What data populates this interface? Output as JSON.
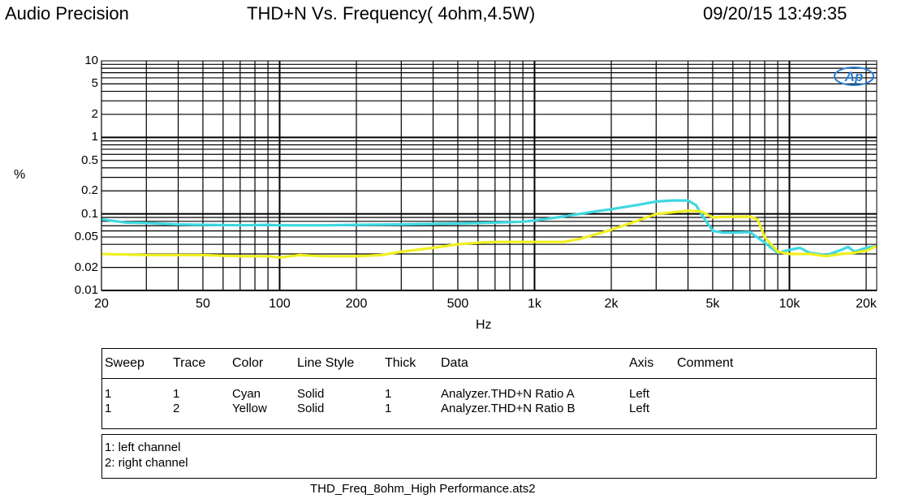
{
  "header": {
    "left": "Audio Precision",
    "center": "THD+N Vs. Frequency( 4ohm,4.5W)",
    "right": "09/20/15 13:49:35"
  },
  "logo_text": "Ap",
  "chart_data": {
    "type": "line",
    "title": "THD+N Vs. Frequency( 4ohm,4.5W)",
    "xlabel": "Hz",
    "ylabel": "%",
    "xscale": "log",
    "yscale": "log",
    "xlim": [
      20,
      22000
    ],
    "ylim": [
      0.01,
      10
    ],
    "grid": true,
    "x_ticks": [
      {
        "value": 20,
        "label": "20"
      },
      {
        "value": 50,
        "label": "50"
      },
      {
        "value": 100,
        "label": "100"
      },
      {
        "value": 200,
        "label": "200"
      },
      {
        "value": 500,
        "label": "500"
      },
      {
        "value": 1000,
        "label": "1k"
      },
      {
        "value": 2000,
        "label": "2k"
      },
      {
        "value": 5000,
        "label": "5k"
      },
      {
        "value": 10000,
        "label": "10k"
      },
      {
        "value": 20000,
        "label": "20k"
      }
    ],
    "y_ticks": [
      {
        "value": 10,
        "label": "10"
      },
      {
        "value": 5,
        "label": "5"
      },
      {
        "value": 2,
        "label": "2"
      },
      {
        "value": 1,
        "label": "1"
      },
      {
        "value": 0.5,
        "label": "0.5"
      },
      {
        "value": 0.2,
        "label": "0.2"
      },
      {
        "value": 0.1,
        "label": "0.1"
      },
      {
        "value": 0.05,
        "label": "0.05"
      },
      {
        "value": 0.02,
        "label": "0.02"
      },
      {
        "value": 0.01,
        "label": "0.01"
      }
    ],
    "series": [
      {
        "color": "#3fd8e0",
        "points": [
          [
            20,
            0.085
          ],
          [
            25,
            0.077
          ],
          [
            30,
            0.076
          ],
          [
            40,
            0.073
          ],
          [
            50,
            0.072
          ],
          [
            70,
            0.071
          ],
          [
            90,
            0.072
          ],
          [
            100,
            0.071
          ],
          [
            150,
            0.071
          ],
          [
            200,
            0.072
          ],
          [
            300,
            0.073
          ],
          [
            400,
            0.074
          ],
          [
            500,
            0.075
          ],
          [
            700,
            0.077
          ],
          [
            900,
            0.079
          ],
          [
            1000,
            0.082
          ],
          [
            1200,
            0.089
          ],
          [
            1500,
            0.1
          ],
          [
            1800,
            0.11
          ],
          [
            2000,
            0.115
          ],
          [
            2500,
            0.13
          ],
          [
            3000,
            0.145
          ],
          [
            3500,
            0.15
          ],
          [
            4000,
            0.15
          ],
          [
            4300,
            0.13
          ],
          [
            4600,
            0.09
          ],
          [
            5000,
            0.06
          ],
          [
            5500,
            0.057
          ],
          [
            6000,
            0.057
          ],
          [
            7000,
            0.058
          ],
          [
            8000,
            0.042
          ],
          [
            9000,
            0.031
          ],
          [
            10000,
            0.034
          ],
          [
            11000,
            0.036
          ],
          [
            12000,
            0.031
          ],
          [
            14000,
            0.029
          ],
          [
            16000,
            0.034
          ],
          [
            17000,
            0.037
          ],
          [
            18000,
            0.032
          ],
          [
            20000,
            0.036
          ],
          [
            22000,
            0.038
          ]
        ]
      },
      {
        "color": "#f0f020",
        "points": [
          [
            20,
            0.03
          ],
          [
            30,
            0.029
          ],
          [
            50,
            0.029
          ],
          [
            70,
            0.028
          ],
          [
            90,
            0.028
          ],
          [
            100,
            0.027
          ],
          [
            120,
            0.029
          ],
          [
            150,
            0.028
          ],
          [
            200,
            0.028
          ],
          [
            250,
            0.029
          ],
          [
            300,
            0.032
          ],
          [
            400,
            0.036
          ],
          [
            500,
            0.04
          ],
          [
            600,
            0.042
          ],
          [
            700,
            0.043
          ],
          [
            1000,
            0.043
          ],
          [
            1300,
            0.043
          ],
          [
            1500,
            0.047
          ],
          [
            2000,
            0.062
          ],
          [
            2500,
            0.08
          ],
          [
            3000,
            0.1
          ],
          [
            4000,
            0.11
          ],
          [
            4500,
            0.108
          ],
          [
            5000,
            0.09
          ],
          [
            6000,
            0.092
          ],
          [
            7000,
            0.092
          ],
          [
            7500,
            0.085
          ],
          [
            8000,
            0.05
          ],
          [
            9000,
            0.032
          ],
          [
            10000,
            0.03
          ],
          [
            12000,
            0.03
          ],
          [
            14000,
            0.028
          ],
          [
            16000,
            0.03
          ],
          [
            18000,
            0.031
          ],
          [
            20000,
            0.033
          ],
          [
            22000,
            0.038
          ]
        ]
      }
    ]
  },
  "legend_table": {
    "headers": [
      "Sweep",
      "Trace",
      "Color",
      "Line Style",
      "Thick",
      "Data",
      "Axis",
      "Comment"
    ],
    "rows": [
      [
        "1",
        "1",
        "Cyan",
        "Solid",
        "1",
        "Analyzer.THD+N Ratio A",
        "Left",
        ""
      ],
      [
        "1",
        "2",
        "Yellow",
        "Solid",
        "1",
        "Analyzer.THD+N Ratio B",
        "Left",
        ""
      ]
    ]
  },
  "comments": [
    "1: left channel",
    "2: right channel"
  ],
  "footer": "THD_Freq_8ohm_High Performance.ats2"
}
